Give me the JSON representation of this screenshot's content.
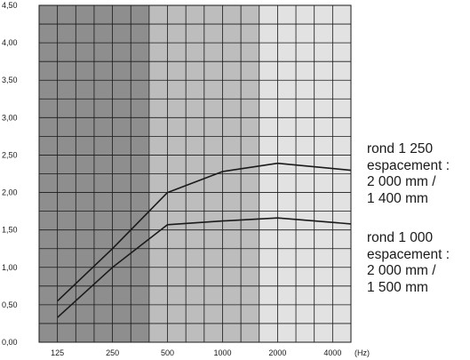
{
  "chart_data": {
    "type": "line",
    "x_scale": "log2",
    "x": [
      125,
      250,
      500,
      1000,
      2000,
      4000
    ],
    "x_tick_labels": [
      "125",
      "250",
      "500",
      "1000",
      "2000",
      "4000"
    ],
    "x_unit_label": "(Hz)",
    "ylim": [
      0,
      4.5
    ],
    "y_ticks": [
      0,
      0.5,
      1.0,
      1.5,
      2.0,
      2.5,
      3.0,
      3.5,
      4.0,
      4.5
    ],
    "y_tick_labels": [
      "0,00",
      "0,50",
      "1,00",
      "1,50",
      "2,00",
      "2,50",
      "3,00",
      "3,50",
      "4,00",
      "4,50"
    ],
    "grid": true,
    "background_bands": [
      {
        "color": "#8e8e8e"
      },
      {
        "color": "#bdbdbd"
      },
      {
        "color": "#e2e2e2"
      }
    ],
    "series": [
      {
        "label_lines": [
          "rond 1 250",
          "espacement :",
          "2 000 mm /",
          "1 400 mm"
        ],
        "values": [
          0.55,
          1.25,
          2.0,
          2.28,
          2.39,
          2.32
        ]
      },
      {
        "label_lines": [
          "rond 1 000",
          "espacement :",
          "2 000 mm /",
          "1 500 mm"
        ],
        "values": [
          0.33,
          1.0,
          1.57,
          1.62,
          1.66,
          1.6
        ]
      }
    ]
  }
}
